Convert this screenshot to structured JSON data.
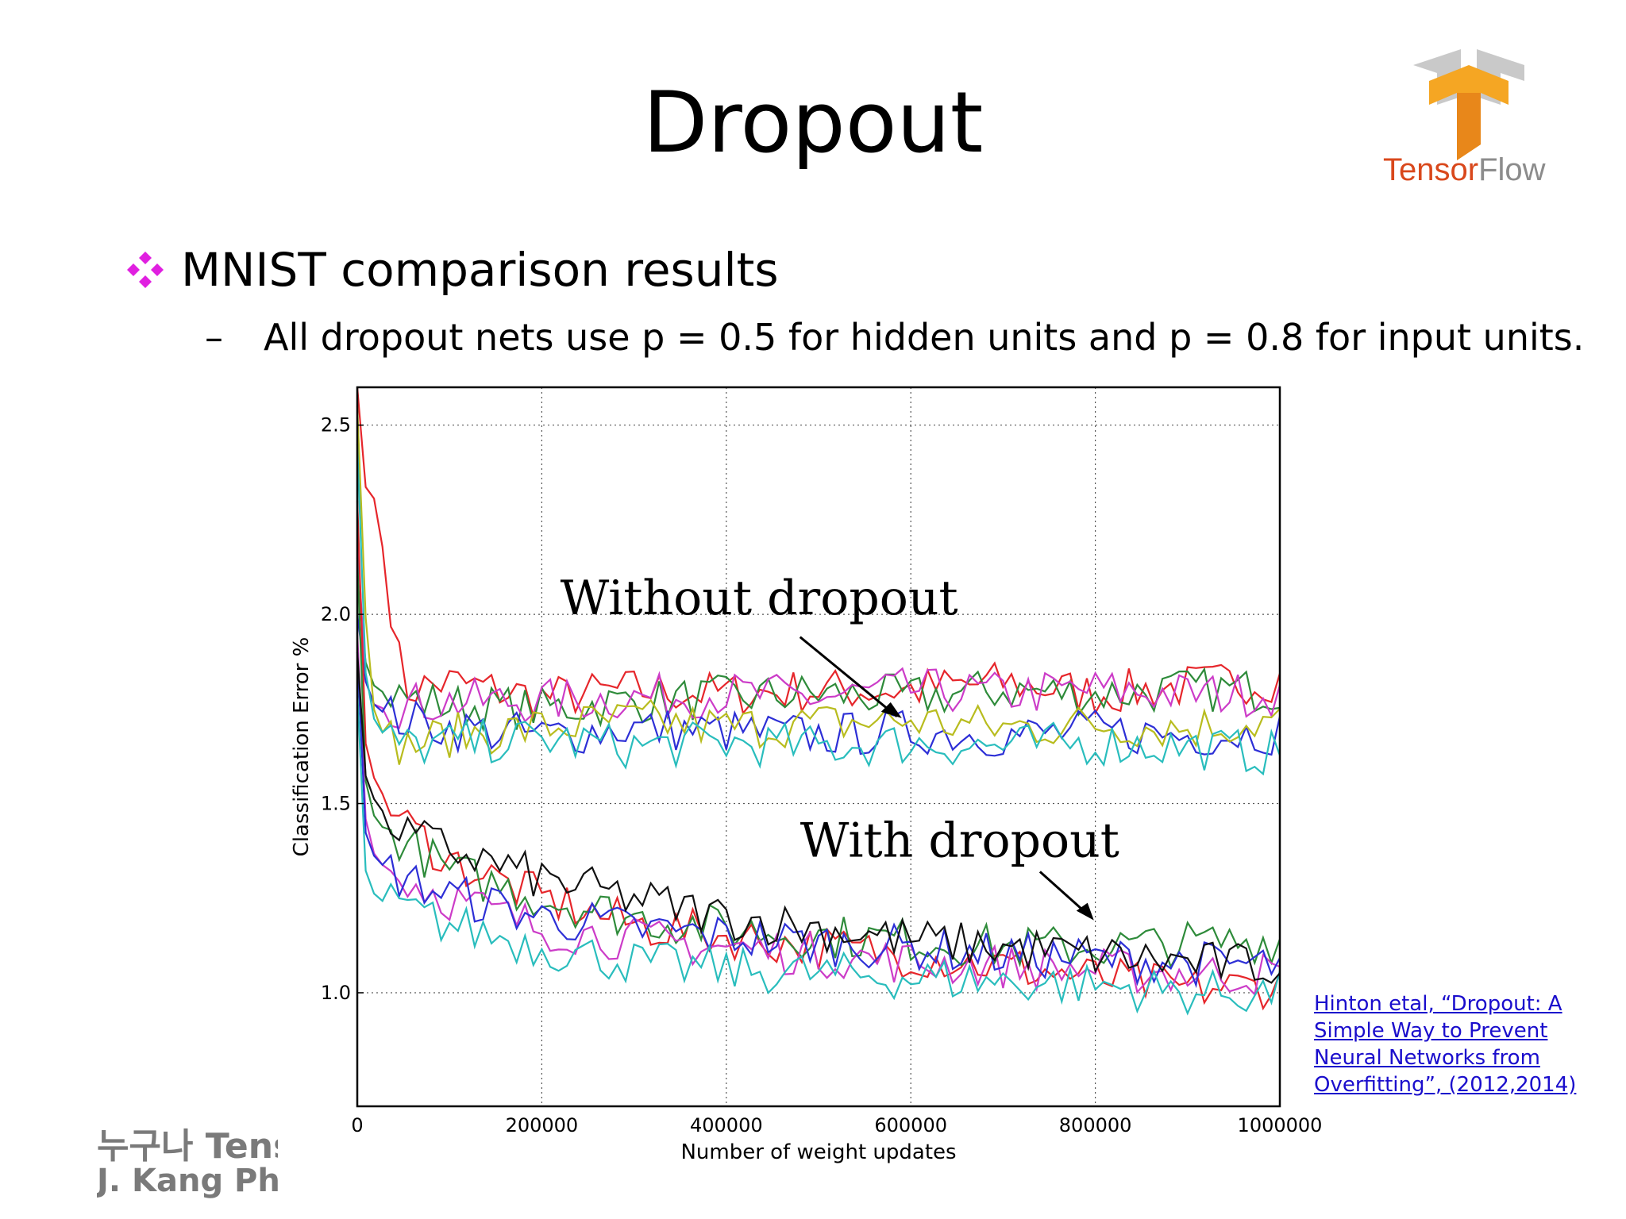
{
  "slide": {
    "title": "Dropout",
    "logo_text": "TensorFlow",
    "bullet": "MNIST comparison results",
    "sub_bullet": "All dropout nets use p = 0.5 for hidden units and p = 0.8 for input units.",
    "citation": "Hinton etal, “Dropout: A Simple Way to Prevent Neural Networks from Overfitting”, (2012,2014)",
    "footer_line1": "누구나 TensorFlow!",
    "footer_line2": "J. Kang Ph.D."
  },
  "colors": {
    "bullet": "#e020e0",
    "citation_link": "#1a0dcc",
    "footer": "#7a7a7a",
    "logo_orange": "#f5a623",
    "logo_text_red": "#d9481c",
    "logo_text_gray": "#8c8c8c"
  },
  "chart_data": {
    "type": "line",
    "title": "",
    "xlabel": "Number of weight updates",
    "ylabel": "Classification Error %",
    "xlim": [
      0,
      1000000
    ],
    "ylim": [
      0.7,
      2.6
    ],
    "xticks": [
      "0",
      "200000",
      "400000",
      "600000",
      "800000",
      "1000000"
    ],
    "yticks": [
      "1.0",
      "1.5",
      "2.0",
      "2.5"
    ],
    "grid": true,
    "annotations": [
      "Without dropout",
      "With dropout"
    ],
    "series": [
      {
        "group": "without",
        "color": "#e6262b",
        "x": [
          0,
          5000,
          20000,
          50000,
          100000,
          200000,
          300000,
          400000,
          500000,
          600000,
          700000,
          800000,
          900000,
          1000000
        ],
        "y": [
          2.6,
          2.35,
          2.3,
          1.8,
          1.82,
          1.78,
          1.8,
          1.79,
          1.8,
          1.8,
          1.82,
          1.79,
          1.81,
          1.83
        ]
      },
      {
        "group": "without",
        "color": "#2e8b3a",
        "x": [
          0,
          5000,
          20000,
          50000,
          100000,
          200000,
          300000,
          400000,
          500000,
          600000,
          700000,
          800000,
          900000,
          1000000
        ],
        "y": [
          2.1,
          1.9,
          1.8,
          1.78,
          1.76,
          1.75,
          1.77,
          1.78,
          1.79,
          1.78,
          1.8,
          1.79,
          1.8,
          1.8
        ]
      },
      {
        "group": "without",
        "color": "#cc3cc8",
        "x": [
          0,
          5000,
          20000,
          50000,
          100000,
          200000,
          300000,
          400000,
          500000,
          600000,
          700000,
          800000,
          900000,
          1000000
        ],
        "y": [
          2.2,
          1.85,
          1.75,
          1.76,
          1.77,
          1.77,
          1.78,
          1.79,
          1.78,
          1.8,
          1.79,
          1.8,
          1.79,
          1.79
        ]
      },
      {
        "group": "without",
        "color": "#2d2fd6",
        "x": [
          0,
          5000,
          20000,
          50000,
          100000,
          200000,
          300000,
          400000,
          500000,
          600000,
          700000,
          800000,
          900000,
          1000000
        ],
        "y": [
          2.0,
          1.85,
          1.75,
          1.72,
          1.7,
          1.68,
          1.7,
          1.69,
          1.68,
          1.69,
          1.68,
          1.69,
          1.68,
          1.69
        ]
      },
      {
        "group": "without",
        "color": "#b8bc1e",
        "x": [
          0,
          5000,
          20000,
          50000,
          100000,
          200000,
          300000,
          400000,
          500000,
          600000,
          700000,
          800000,
          900000,
          1000000
        ],
        "y": [
          2.55,
          2.1,
          1.7,
          1.65,
          1.68,
          1.7,
          1.72,
          1.7,
          1.71,
          1.72,
          1.7,
          1.71,
          1.7,
          1.72
        ]
      },
      {
        "group": "without",
        "color": "#29bdbd",
        "x": [
          0,
          5000,
          20000,
          50000,
          100000,
          200000,
          300000,
          400000,
          500000,
          600000,
          700000,
          800000,
          900000,
          1000000
        ],
        "y": [
          2.45,
          1.9,
          1.7,
          1.65,
          1.66,
          1.67,
          1.65,
          1.66,
          1.65,
          1.66,
          1.65,
          1.66,
          1.65,
          1.63
        ]
      },
      {
        "group": "with",
        "color": "#e6262b",
        "x": [
          0,
          5000,
          20000,
          50000,
          100000,
          200000,
          300000,
          400000,
          500000,
          600000,
          700000,
          800000,
          900000,
          1000000
        ],
        "y": [
          2.3,
          1.7,
          1.55,
          1.45,
          1.35,
          1.25,
          1.18,
          1.15,
          1.12,
          1.1,
          1.07,
          1.04,
          1.01,
          1.02
        ]
      },
      {
        "group": "with",
        "color": "#2e8b3a",
        "x": [
          0,
          5000,
          20000,
          50000,
          100000,
          200000,
          300000,
          400000,
          500000,
          600000,
          700000,
          800000,
          900000,
          1000000
        ],
        "y": [
          2.15,
          1.6,
          1.45,
          1.4,
          1.32,
          1.25,
          1.2,
          1.17,
          1.15,
          1.14,
          1.12,
          1.12,
          1.13,
          1.14
        ]
      },
      {
        "group": "with",
        "color": "#cc3cc8",
        "x": [
          0,
          5000,
          20000,
          50000,
          100000,
          200000,
          300000,
          400000,
          500000,
          600000,
          700000,
          800000,
          900000,
          1000000
        ],
        "y": [
          1.95,
          1.5,
          1.35,
          1.3,
          1.25,
          1.17,
          1.14,
          1.12,
          1.1,
          1.08,
          1.07,
          1.06,
          1.05,
          1.05
        ]
      },
      {
        "group": "with",
        "color": "#2d2fd6",
        "x": [
          0,
          5000,
          20000,
          50000,
          100000,
          200000,
          300000,
          400000,
          500000,
          600000,
          700000,
          800000,
          900000,
          1000000
        ],
        "y": [
          1.9,
          1.45,
          1.35,
          1.3,
          1.26,
          1.2,
          1.17,
          1.15,
          1.13,
          1.12,
          1.1,
          1.09,
          1.08,
          1.07
        ]
      },
      {
        "group": "with",
        "color": "#29bdbd",
        "x": [
          0,
          5000,
          20000,
          50000,
          100000,
          200000,
          300000,
          400000,
          500000,
          600000,
          700000,
          800000,
          900000,
          1000000
        ],
        "y": [
          1.8,
          1.35,
          1.25,
          1.22,
          1.18,
          1.12,
          1.08,
          1.06,
          1.05,
          1.04,
          1.03,
          1.02,
          1.0,
          1.0
        ]
      },
      {
        "group": "with",
        "color": "#111111",
        "x": [
          0,
          5000,
          20000,
          50000,
          100000,
          200000,
          300000,
          400000,
          500000,
          600000,
          700000,
          800000,
          900000,
          1000000
        ],
        "y": [
          1.9,
          1.6,
          1.5,
          1.42,
          1.38,
          1.3,
          1.25,
          1.2,
          1.17,
          1.14,
          1.12,
          1.1,
          1.08,
          1.07
        ]
      }
    ]
  }
}
